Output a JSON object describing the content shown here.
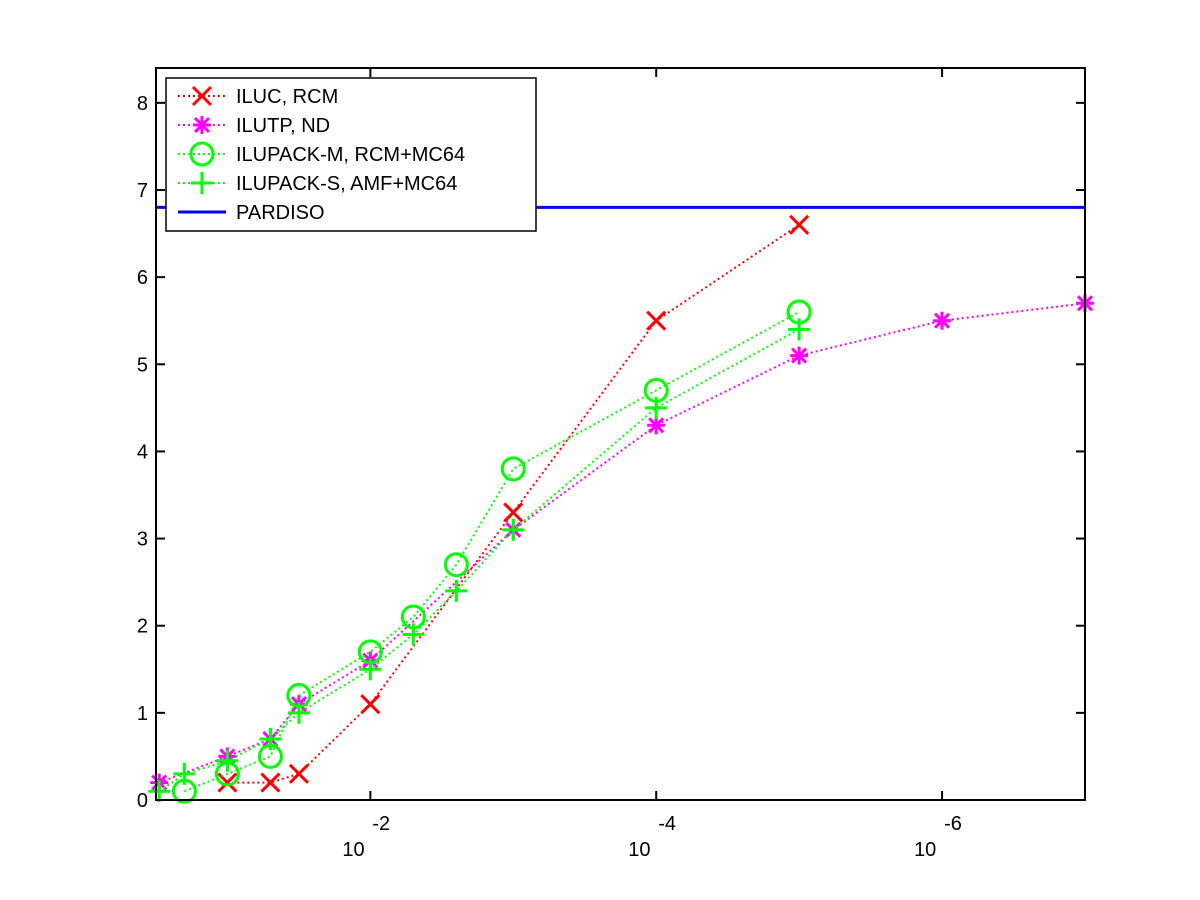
{
  "chart_data": {
    "type": "line",
    "title": "",
    "xlabel": "",
    "ylabel": "",
    "x_scale": "log",
    "x_reversed": true,
    "xlim": [
      0.316,
      1e-07
    ],
    "ylim": [
      0,
      8.4
    ],
    "grid": false,
    "legend_position": "top-left",
    "x_ticks": [
      {
        "value": 0.01,
        "base": "10",
        "exponent": "-2"
      },
      {
        "value": 0.0001,
        "base": "10",
        "exponent": "-4"
      },
      {
        "value": 1e-06,
        "base": "10",
        "exponent": "-6"
      }
    ],
    "y_ticks": [
      "0",
      "1",
      "2",
      "3",
      "4",
      "5",
      "6",
      "7",
      "8"
    ],
    "y_tick_values": [
      0,
      1,
      2,
      3,
      4,
      5,
      6,
      7,
      8
    ],
    "series": [
      {
        "name": "ILUC, RCM",
        "color": "#ff0000",
        "marker": "x",
        "line_style": "dotted",
        "points": [
          [
            0.1,
            0.2
          ],
          [
            0.05,
            0.2
          ],
          [
            0.0316,
            0.3
          ],
          [
            0.01,
            1.1
          ],
          [
            0.001,
            3.3
          ],
          [
            0.0001,
            5.5
          ],
          [
            1e-05,
            6.6
          ]
        ]
      },
      {
        "name": "ILUTP,  ND",
        "color": "#ff00ff",
        "marker": "star",
        "line_style": "dotted",
        "points": [
          [
            0.3,
            0.2
          ],
          [
            0.1,
            0.5
          ],
          [
            0.05,
            0.7
          ],
          [
            0.0316,
            1.1
          ],
          [
            0.01,
            1.6
          ],
          [
            0.001,
            3.1
          ],
          [
            0.0001,
            4.3
          ],
          [
            1e-05,
            5.1
          ],
          [
            1e-06,
            5.5
          ],
          [
            1e-07,
            5.7
          ]
        ]
      },
      {
        "name": "ILUPACK-M, RCM+MC64",
        "color": "#00ff00",
        "marker": "circle",
        "line_style": "dotted",
        "points": [
          [
            0.2,
            0.1
          ],
          [
            0.1,
            0.3
          ],
          [
            0.05,
            0.5
          ],
          [
            0.0316,
            1.2
          ],
          [
            0.01,
            1.7
          ],
          [
            0.005,
            2.1
          ],
          [
            0.0025,
            2.7
          ],
          [
            0.001,
            3.8
          ],
          [
            0.0001,
            4.7
          ],
          [
            1e-05,
            5.6
          ]
        ]
      },
      {
        "name": "ILUPACK-S, AMF+MC64",
        "color": "#00ff00",
        "marker": "plus",
        "line_style": "dotted",
        "points": [
          [
            0.3,
            0.1
          ],
          [
            0.2,
            0.3
          ],
          [
            0.1,
            0.45
          ],
          [
            0.05,
            0.7
          ],
          [
            0.0316,
            1.0
          ],
          [
            0.01,
            1.5
          ],
          [
            0.005,
            1.9
          ],
          [
            0.0025,
            2.4
          ],
          [
            0.001,
            3.1
          ],
          [
            0.0001,
            4.5
          ],
          [
            1e-05,
            5.4
          ]
        ]
      },
      {
        "name": "PARDISO",
        "color": "#0000ff",
        "marker": "none",
        "line_style": "solid",
        "points": [
          [
            0.316,
            6.8
          ],
          [
            1e-07,
            6.8
          ]
        ]
      }
    ]
  }
}
